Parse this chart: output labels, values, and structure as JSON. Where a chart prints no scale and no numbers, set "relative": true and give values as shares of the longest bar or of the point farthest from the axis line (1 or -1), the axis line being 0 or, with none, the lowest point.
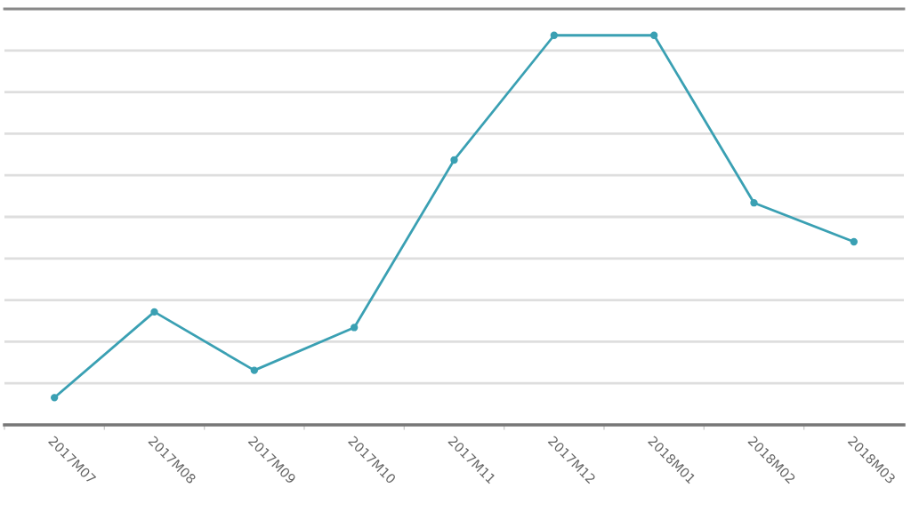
{
  "chart_data": {
    "type": "line",
    "relative": true,
    "categories": [
      "2017M07",
      "2017M08",
      "2017M09",
      "2017M10",
      "2017M11",
      "2017M12",
      "2018M01",
      "2018M02",
      "2018M03"
    ],
    "series": [
      {
        "color": "#3aa0b3",
        "values": [
          0.07,
          0.29,
          0.14,
          0.25,
          0.68,
          1,
          1,
          0.57,
          0.47
        ]
      }
    ],
    "grid": "y",
    "marker": "circle",
    "line_style": "solid",
    "tick_labels": "x"
  }
}
